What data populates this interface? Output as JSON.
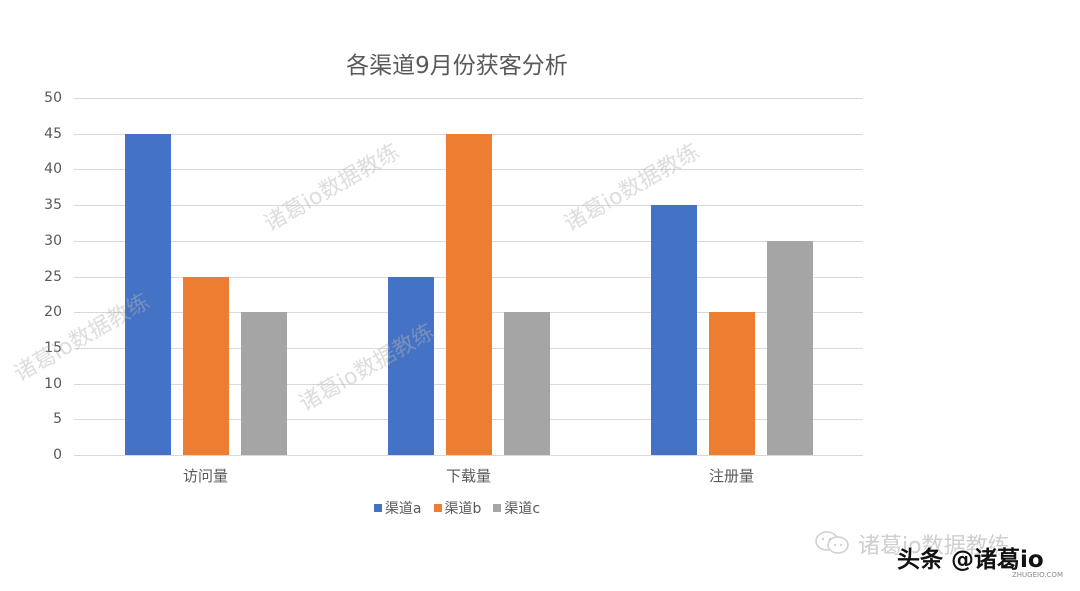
{
  "chart_data": {
    "type": "bar",
    "title": "各渠道9月份获客分析",
    "xlabel": "",
    "ylabel": "",
    "ylim": [
      0,
      50
    ],
    "yticks": [
      0,
      5,
      10,
      15,
      20,
      25,
      30,
      35,
      40,
      45,
      50
    ],
    "grid": true,
    "legend_position": "bottom",
    "categories": [
      "访问量",
      "下载量",
      "注册量"
    ],
    "series": [
      {
        "name": "渠道a",
        "color": "#4472c4",
        "values": [
          45,
          25,
          35
        ]
      },
      {
        "name": "渠道b",
        "color": "#ed7d31",
        "values": [
          25,
          45,
          20
        ]
      },
      {
        "name": "渠道c",
        "color": "#a5a5a5",
        "values": [
          20,
          20,
          30
        ]
      }
    ]
  },
  "watermark": {
    "text": "诸葛io数据教练",
    "footer_text": "诸葛io数据教练",
    "brand": "头条 @诸葛io",
    "brand_sub": "ZHUGEIO.COM"
  }
}
